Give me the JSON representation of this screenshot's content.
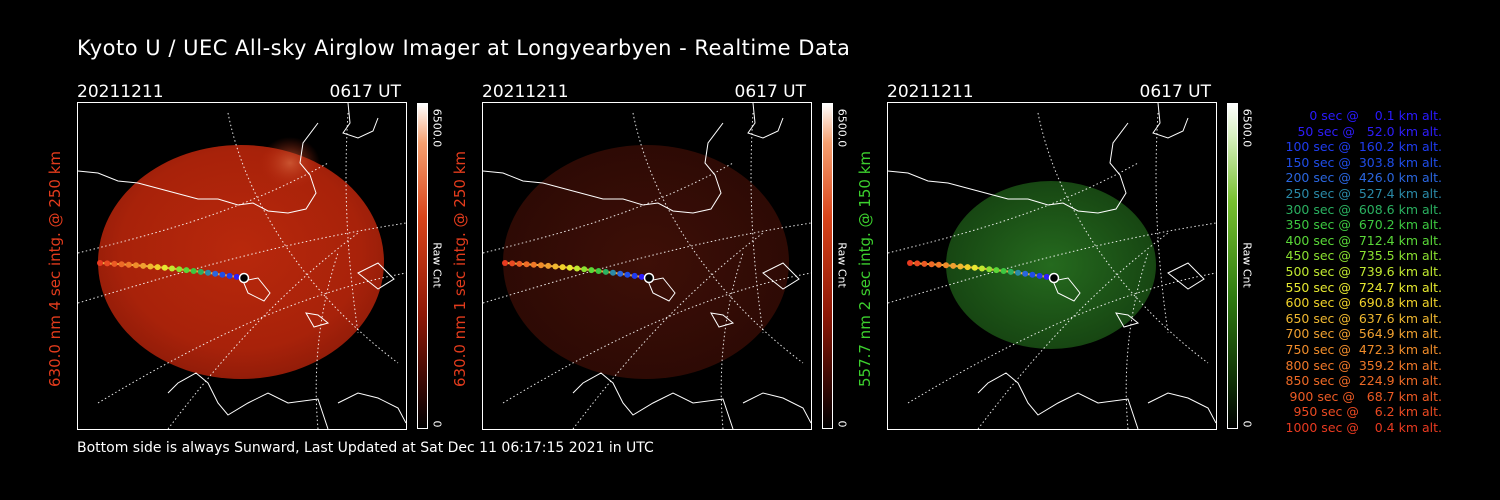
{
  "title": "Kyoto U / UEC All-sky Airglow Imager at Longyearbyen - Realtime Data",
  "footer": "Bottom side is always Sunward, Last Updated at Sat Dec 11 06:17:15 2021 in UTC",
  "colors": {
    "red_label": "#e23b1c",
    "green_label": "#3ccf2e",
    "red_bright": "#c42a0e",
    "red_dim": "#3a0d06",
    "green_glow": "#1f5a1a"
  },
  "panels": [
    {
      "date": "20211211",
      "time": "0617 UT",
      "side_label": "630.0 nm  4 sec intg. @ 250 km",
      "cbar_max": "6500.0",
      "cbar_unit": "Raw Cnt",
      "cbar_min": "0",
      "theme": "red-bright"
    },
    {
      "date": "20211211",
      "time": "0617 UT",
      "side_label": "630.0 nm  1 sec intg. @ 250 km",
      "cbar_max": "6500.0",
      "cbar_unit": "Raw Cnt",
      "cbar_min": "0",
      "theme": "red-dim"
    },
    {
      "date": "20211211",
      "time": "0617 UT",
      "side_label": "557.7 nm  2 sec intg. @ 150 km",
      "cbar_max": "6500.0",
      "cbar_unit": "Raw Cnt",
      "cbar_min": "0",
      "theme": "green"
    }
  ],
  "legend": [
    {
      "text": "   0 sec @    0.1 km alt.",
      "color": "#2a1aff"
    },
    {
      "text": "  50 sec @   52.0 km alt.",
      "color": "#2f1dfb"
    },
    {
      "text": " 100 sec @  160.2 km alt.",
      "color": "#1f3cf0"
    },
    {
      "text": " 150 sec @  303.8 km alt.",
      "color": "#1f4de8"
    },
    {
      "text": " 200 sec @  426.0 km alt.",
      "color": "#2a66e0"
    },
    {
      "text": " 250 sec @  527.4 km alt.",
      "color": "#2a8aa8"
    },
    {
      "text": " 300 sec @  608.6 km alt.",
      "color": "#2ab060"
    },
    {
      "text": " 350 sec @  670.2 km alt.",
      "color": "#3cc840"
    },
    {
      "text": " 400 sec @  712.4 km alt.",
      "color": "#5ad838"
    },
    {
      "text": " 450 sec @  735.5 km alt.",
      "color": "#8ae030"
    },
    {
      "text": " 500 sec @  739.6 km alt.",
      "color": "#c0e830"
    },
    {
      "text": " 550 sec @  724.7 km alt.",
      "color": "#e6e830"
    },
    {
      "text": " 600 sec @  690.8 km alt.",
      "color": "#f0d22a"
    },
    {
      "text": " 650 sec @  637.6 km alt.",
      "color": "#f0b830"
    },
    {
      "text": " 700 sec @  564.9 km alt.",
      "color": "#f0a030"
    },
    {
      "text": " 750 sec @  472.3 km alt.",
      "color": "#f08c2a"
    },
    {
      "text": " 800 sec @  359.2 km alt.",
      "color": "#f07828"
    },
    {
      "text": " 850 sec @  224.9 km alt.",
      "color": "#ee6a26"
    },
    {
      "text": " 900 sec @   68.7 km alt.",
      "color": "#ec5a24"
    },
    {
      "text": " 950 sec @    6.2 km alt.",
      "color": "#ea4a22"
    },
    {
      "text": "1000 sec @    0.4 km alt.",
      "color": "#e83a20"
    }
  ]
}
